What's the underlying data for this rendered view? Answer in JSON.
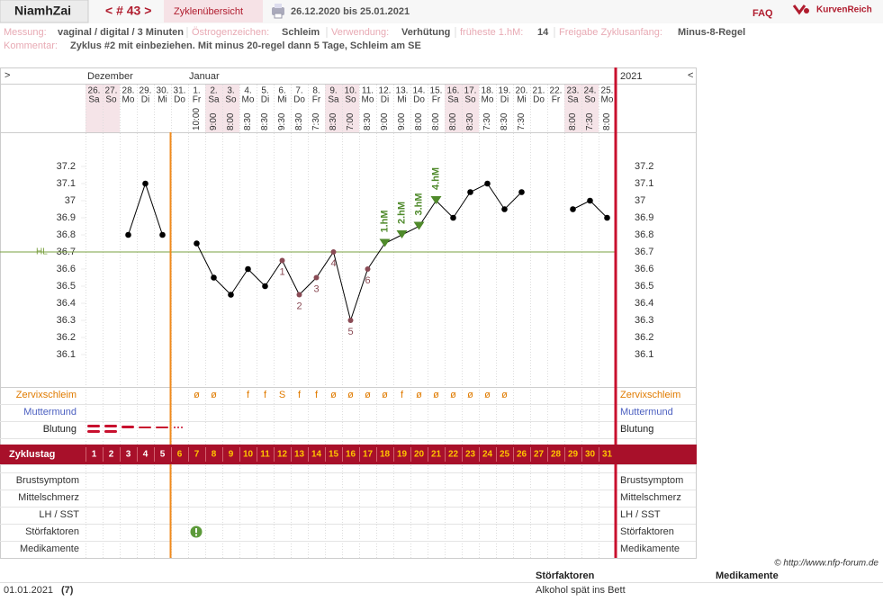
{
  "header": {
    "user": "NiamhZai",
    "cycle_nav": "< # 43 >",
    "overview": "Zyklenübersicht",
    "range": "26.12.2020 bis 25.01.2021",
    "faq": "FAQ",
    "logo": "KurvenReich"
  },
  "info": {
    "fields": [
      {
        "label": "Messung:",
        "value": "vaginal / digital / 3 Minuten"
      },
      {
        "label": "Östrogenzeichen:",
        "value": "Schleim"
      },
      {
        "label": "Verwendung:",
        "value": "Verhütung"
      },
      {
        "label": "früheste 1.hM:",
        "value": "14"
      },
      {
        "label": "Freigabe Zyklusanfang:",
        "value": "Minus-8-Regel"
      }
    ],
    "comment": {
      "label": "Kommentar:",
      "value": "Zyklus #2  mit einbeziehen. Mit minus 20-regel dann 5 Tage,  Schleim am SE"
    }
  },
  "chart_data": {
    "type": "line",
    "nav_left": ">",
    "nav_right": "<",
    "months": [
      "Dezember",
      "Januar"
    ],
    "year": "2021",
    "categories": [
      "26.",
      "27.",
      "28.",
      "29.",
      "30.",
      "31.",
      "1.",
      "2.",
      "3.",
      "4.",
      "5.",
      "6.",
      "7.",
      "8.",
      "9.",
      "10.",
      "11.",
      "12.",
      "13.",
      "14.",
      "15.",
      "16.",
      "17.",
      "18.",
      "19.",
      "20.",
      "21.",
      "22.",
      "23.",
      "24.",
      "25."
    ],
    "weekdays": [
      "Sa",
      "So",
      "Mo",
      "Di",
      "Mi",
      "Do",
      "Fr",
      "Sa",
      "So",
      "Mo",
      "Di",
      "Mi",
      "Do",
      "Fr",
      "Sa",
      "So",
      "Mo",
      "Di",
      "Mi",
      "Do",
      "Fr",
      "Sa",
      "So",
      "Mo",
      "Di",
      "Mi",
      "Do",
      "Fr",
      "Sa",
      "So",
      "Mo"
    ],
    "times": [
      null,
      null,
      null,
      null,
      null,
      null,
      "10:00",
      "9:00",
      "8:00",
      "8:30",
      "8:30",
      "9:30",
      "8:30",
      "7:30",
      "8:30",
      "7:00",
      "8:30",
      "9:00",
      "9:00",
      "8:00",
      "8:00",
      "8:00",
      "8:30",
      "7:30",
      "8:30",
      "7:30",
      null,
      null,
      "8:00",
      "7:30",
      "8:00"
    ],
    "values": [
      null,
      null,
      36.8,
      37.1,
      36.8,
      null,
      36.75,
      36.55,
      36.45,
      36.6,
      36.5,
      36.65,
      36.45,
      36.55,
      36.7,
      36.3,
      36.6,
      36.75,
      36.8,
      36.85,
      37.0,
      36.9,
      37.05,
      37.1,
      36.95,
      37.05,
      null,
      null,
      36.95,
      37.0,
      36.9
    ],
    "point_notes": [
      null,
      null,
      null,
      null,
      null,
      null,
      null,
      null,
      null,
      null,
      null,
      "1",
      "2",
      "3",
      "4",
      "5",
      "6",
      null,
      null,
      null,
      null,
      null,
      null,
      null,
      null,
      null,
      null,
      null,
      null,
      null,
      null
    ],
    "hm_labels": [
      null,
      null,
      null,
      null,
      null,
      null,
      null,
      null,
      null,
      null,
      null,
      null,
      null,
      null,
      null,
      null,
      null,
      "1.hM",
      "2.hM",
      "3.hM",
      "4.hM",
      null,
      null,
      null,
      null,
      null,
      null,
      null,
      null,
      null,
      null
    ],
    "color": "#000000",
    "hm_color": "#4f8a2b",
    "note_color": "#8a4b55",
    "ylim": [
      35.9,
      37.4
    ],
    "yticks": [
      37.2,
      37.1,
      37,
      36.9,
      36.8,
      36.7,
      36.6,
      36.5,
      36.4,
      36.3,
      36.2,
      36.1
    ],
    "hl": {
      "label": "HL",
      "value": 36.7,
      "color": "#7aa040"
    },
    "mucus": [
      null,
      null,
      null,
      null,
      null,
      null,
      "ø",
      "ø",
      null,
      "f",
      "f",
      "S",
      "f",
      "f",
      "ø",
      "ø",
      "ø",
      "ø",
      "f",
      "ø",
      "ø",
      "ø",
      "ø",
      "ø",
      "ø",
      null,
      null,
      null,
      null,
      null,
      null
    ],
    "upper_rows": [
      "Zervixschleim",
      "Muttermund",
      "Blutung"
    ],
    "cycle_day_label": "Zyklustag",
    "cycle_days": [
      1,
      2,
      3,
      4,
      5,
      6,
      7,
      8,
      9,
      10,
      11,
      12,
      13,
      14,
      15,
      16,
      17,
      18,
      19,
      20,
      21,
      22,
      23,
      24,
      25,
      26,
      27,
      28,
      29,
      30,
      31
    ],
    "lower_rows": [
      "Brustsymptom",
      "Mittelschmerz",
      "LH / SST",
      "Störfaktoren",
      "Medikamente"
    ]
  },
  "footer": {
    "copyright": "© http://www.nfp-forum.de",
    "notes_headers": [
      "Störfaktoren",
      "Medikamente"
    ],
    "notes_rows": [
      [
        "01.01.2021",
        "(7)",
        "Alkohol spät ins Bett"
      ]
    ]
  }
}
